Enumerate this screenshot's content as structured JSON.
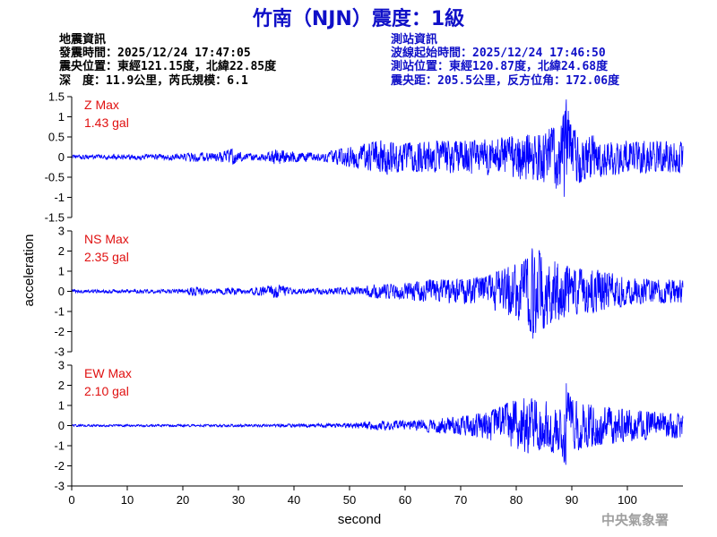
{
  "title": "竹南（NJN）震度：1級",
  "event_info": {
    "heading": "地震資訊",
    "origin_time": "發震時間：2025/12/24 17:47:05",
    "epicenter": "震央位置：東經121.15度，北緯22.85度",
    "depth_magnitude": "深　度：11.9公里，芮氏規模：6.1"
  },
  "station_info": {
    "heading": "測站資訊",
    "start_time": "波線起始時間：2025/12/24 17:46:50",
    "location": "測站位置：東經120.87度，北緯24.68度",
    "distance": "震央距：205.5公里，反方位角：172.06度"
  },
  "agency": "中央氣象署",
  "colors": {
    "trace": "#0000ff",
    "title": "#1010c8",
    "max_label": "#e01010",
    "agency": "#a0a0a0"
  },
  "chart_data": {
    "type": "line",
    "xlabel": "second",
    "ylabel": "acceleration",
    "xlim": [
      0,
      110
    ],
    "xticks": [
      0,
      10,
      20,
      30,
      40,
      50,
      60,
      70,
      80,
      90,
      100
    ],
    "grid": false,
    "panels": [
      {
        "name": "Z",
        "max_label": "Z Max",
        "max_value": "1.43 gal",
        "ylim": [
          -1.5,
          1.5
        ],
        "yticks": [
          -1.5,
          -1,
          -0.5,
          0,
          0.5,
          1,
          1.5
        ],
        "ytick_labels": [
          "-1.5",
          "-1",
          "-0.5",
          "0",
          "0.5",
          "1",
          "1.5"
        ],
        "envelope": [
          [
            0,
            0.05
          ],
          [
            20,
            0.08
          ],
          [
            22,
            0.12
          ],
          [
            26,
            0.1
          ],
          [
            29,
            0.2
          ],
          [
            31,
            0.08
          ],
          [
            35,
            0.1
          ],
          [
            37,
            0.2
          ],
          [
            40,
            0.12
          ],
          [
            45,
            0.1
          ],
          [
            48,
            0.2
          ],
          [
            52,
            0.3
          ],
          [
            56,
            0.45
          ],
          [
            60,
            0.35
          ],
          [
            65,
            0.4
          ],
          [
            70,
            0.4
          ],
          [
            75,
            0.45
          ],
          [
            80,
            0.55
          ],
          [
            84,
            0.6
          ],
          [
            88,
            0.85
          ],
          [
            89,
            1.43
          ],
          [
            90,
            0.7
          ],
          [
            95,
            0.5
          ],
          [
            100,
            0.4
          ],
          [
            105,
            0.4
          ],
          [
            110,
            0.4
          ]
        ]
      },
      {
        "name": "NS",
        "max_label": "NS Max",
        "max_value": "2.35 gal",
        "ylim": [
          -3,
          3
        ],
        "yticks": [
          -3,
          -2,
          -1,
          0,
          1,
          2,
          3
        ],
        "ytick_labels": [
          "-3",
          "-2",
          "-1",
          "0",
          "1",
          "2",
          "3"
        ],
        "envelope": [
          [
            0,
            0.08
          ],
          [
            20,
            0.1
          ],
          [
            22,
            0.25
          ],
          [
            25,
            0.1
          ],
          [
            29,
            0.2
          ],
          [
            31,
            0.1
          ],
          [
            37,
            0.35
          ],
          [
            40,
            0.12
          ],
          [
            50,
            0.18
          ],
          [
            55,
            0.35
          ],
          [
            60,
            0.4
          ],
          [
            65,
            0.6
          ],
          [
            70,
            0.6
          ],
          [
            75,
            0.8
          ],
          [
            78,
            1.2
          ],
          [
            80,
            1.4
          ],
          [
            82,
            1.7
          ],
          [
            83,
            2.35
          ],
          [
            86,
            1.6
          ],
          [
            90,
            1.2
          ],
          [
            95,
            1.1
          ],
          [
            100,
            0.7
          ],
          [
            105,
            0.6
          ],
          [
            110,
            0.6
          ]
        ]
      },
      {
        "name": "EW",
        "max_label": "EW Max",
        "max_value": "2.10 gal",
        "ylim": [
          -3,
          3
        ],
        "yticks": [
          -3,
          -2,
          -1,
          0,
          1,
          2,
          3
        ],
        "ytick_labels": [
          "-3",
          "-2",
          "-1",
          "0",
          "1",
          "2",
          "3"
        ],
        "envelope": [
          [
            0,
            0.05
          ],
          [
            30,
            0.06
          ],
          [
            40,
            0.08
          ],
          [
            50,
            0.12
          ],
          [
            55,
            0.22
          ],
          [
            60,
            0.25
          ],
          [
            65,
            0.35
          ],
          [
            70,
            0.45
          ],
          [
            75,
            0.7
          ],
          [
            78,
            1.1
          ],
          [
            80,
            1.3
          ],
          [
            82,
            1.4
          ],
          [
            85,
            1.2
          ],
          [
            88,
            1.5
          ],
          [
            89,
            2.1
          ],
          [
            90,
            1.3
          ],
          [
            95,
            1.0
          ],
          [
            100,
            0.8
          ],
          [
            105,
            0.7
          ],
          [
            110,
            0.6
          ]
        ]
      }
    ]
  }
}
